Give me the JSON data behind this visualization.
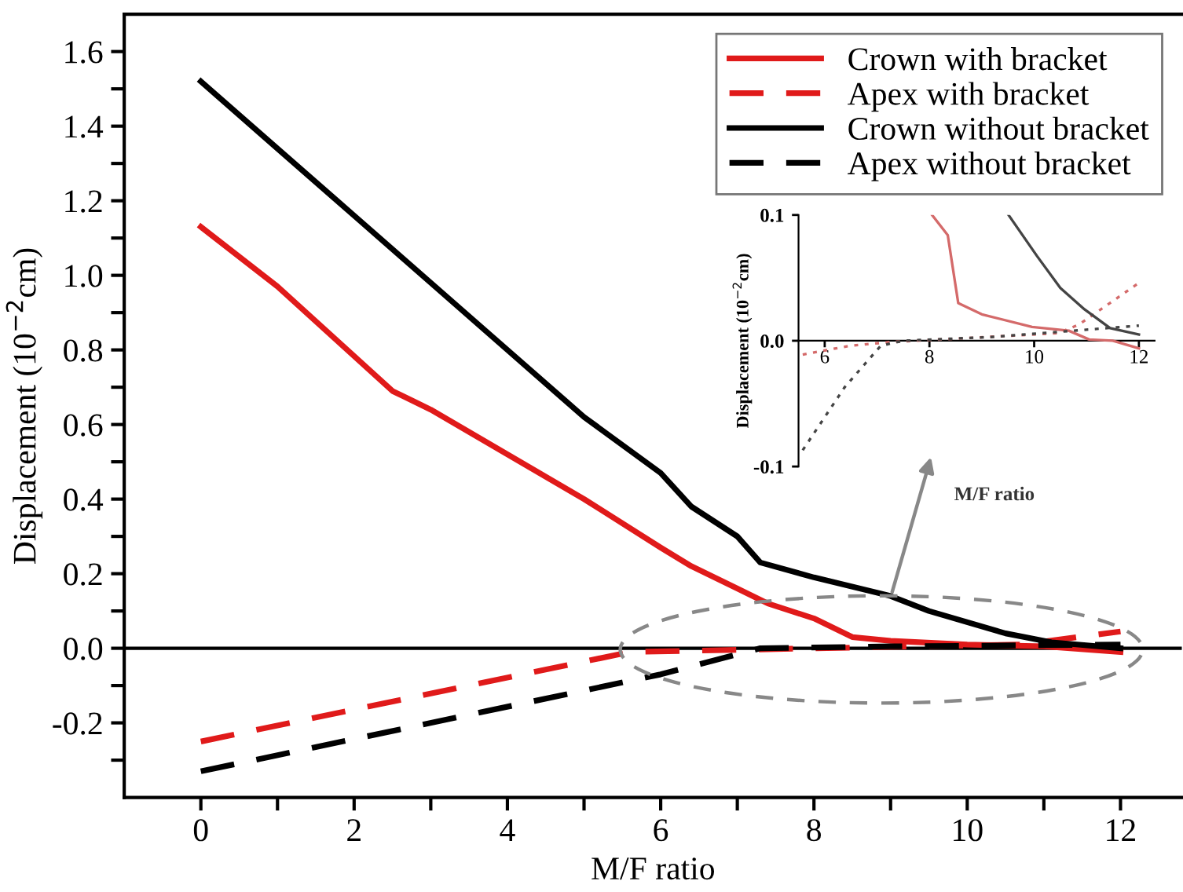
{
  "chart_data": [
    {
      "type": "line",
      "xlabel": "M/F ratio",
      "ylabel": "Displacement (10$^{−2}$cm)",
      "xlim": [
        -1,
        12.8
      ],
      "ylim": [
        -0.4,
        1.7
      ],
      "xticks": [
        0,
        {
          "value": 1,
          "label": null
        },
        2,
        {
          "value": 3,
          "label": null
        },
        4,
        {
          "value": 5,
          "label": null
        },
        6,
        {
          "value": 7,
          "label": null
        },
        8,
        {
          "value": 9,
          "label": null
        },
        10,
        {
          "value": 11,
          "label": null
        },
        12
      ],
      "yticks": [
        {
          "value": -0.3,
          "label": null
        },
        {
          "value": -0.2,
          "label": "-0.2"
        },
        {
          "value": -0.1,
          "label": null
        },
        {
          "value": 0,
          "label": "0.0"
        },
        {
          "value": 0.1,
          "label": null
        },
        {
          "value": 0.2,
          "label": "0.2"
        },
        {
          "value": 0.3,
          "label": null
        },
        {
          "value": 0.4,
          "label": "0.4"
        },
        {
          "value": 0.5,
          "label": null
        },
        {
          "value": 0.6,
          "label": "0.6"
        },
        {
          "value": 0.7,
          "label": null
        },
        {
          "value": 0.8,
          "label": "0.8"
        },
        {
          "value": 0.9,
          "label": null
        },
        {
          "value": 1.0,
          "label": "1.0"
        },
        {
          "value": 1.1,
          "label": null
        },
        {
          "value": 1.2,
          "label": "1.2"
        },
        {
          "value": 1.3,
          "label": null
        },
        {
          "value": 1.4,
          "label": "1.4"
        },
        {
          "value": 1.5,
          "label": null
        },
        {
          "value": 1.6,
          "label": "1.6"
        }
      ],
      "grid": false,
      "legend": "top right",
      "marker": "none",
      "ref_lines": [
        {
          "axis": "y",
          "value": 0,
          "color": "#000000",
          "line_style": "solid"
        }
      ],
      "series": [
        {
          "name": "Crown with bracket",
          "color": "#e01a1a",
          "line_style": "solid",
          "x": [
            0,
            1,
            2.5,
            3,
            4,
            5,
            6,
            6.4,
            7,
            7.4,
            8,
            8.5,
            9,
            10,
            11,
            12
          ],
          "values": [
            1.13,
            0.97,
            0.69,
            0.64,
            0.52,
            0.4,
            0.27,
            0.22,
            0.16,
            0.12,
            0.08,
            0.03,
            0.02,
            0.01,
            0.005,
            -0.01
          ]
        },
        {
          "name": "Apex with bracket",
          "color": "#e01a1a",
          "line_style": "dashed",
          "x": [
            0,
            5.6,
            8,
            10.7,
            12
          ],
          "values": [
            -0.25,
            -0.01,
            0.0,
            0.01,
            0.045
          ]
        },
        {
          "name": "Crown without bracket",
          "color": "#000000",
          "line_style": "solid",
          "x": [
            0,
            1,
            2,
            3,
            4,
            5,
            6,
            6.4,
            7,
            7.3,
            8,
            9,
            9.5,
            10.5,
            11.1,
            12
          ],
          "values": [
            1.52,
            1.34,
            1.16,
            0.98,
            0.8,
            0.62,
            0.47,
            0.38,
            0.3,
            0.23,
            0.19,
            0.14,
            0.1,
            0.04,
            0.016,
            0.0
          ]
        },
        {
          "name": "Apex without bracket",
          "color": "#000000",
          "line_style": "dashed",
          "x": [
            0,
            6,
            7.3,
            9,
            12
          ],
          "values": [
            -0.33,
            -0.07,
            0.0,
            0.005,
            0.01
          ]
        }
      ]
    },
    {
      "type": "line",
      "xlabel": "M/F ratio",
      "ylabel": "Displacement (10$^{−2}$cm)",
      "xlim": [
        5.5,
        12.3
      ],
      "ylim": [
        -0.1,
        0.1
      ],
      "xticks": [
        6,
        8,
        10,
        12
      ],
      "yticks": [
        {
          "value": -0.1,
          "label": "-0.1"
        },
        {
          "value": 0,
          "label": "0.0"
        },
        {
          "value": 0.1,
          "label": "0.1"
        }
      ],
      "grid": false,
      "legend": false,
      "marker": "none",
      "series": [
        {
          "color": "#d46a6a",
          "line_style": "solid",
          "x": [
            8.05,
            8.35,
            8.55,
            9.0,
            9.96,
            10.66,
            11.05,
            11.5,
            12
          ],
          "values": [
            0.1,
            0.084,
            0.03,
            0.021,
            0.011,
            0.008,
            0.001,
            0.0,
            -0.006
          ]
        },
        {
          "color": "#d46a6a",
          "line_style": "dotted",
          "x": [
            5.58,
            6.48,
            7.27,
            8.67,
            10.46,
            10.86,
            12
          ],
          "values": [
            -0.011,
            -0.004,
            -0.001,
            0.002,
            0.006,
            0.013,
            0.046
          ]
        },
        {
          "color": "#444444",
          "line_style": "solid",
          "x": [
            9.51,
            10.06,
            10.5,
            10.96,
            11.45,
            12
          ],
          "values": [
            0.1,
            0.067,
            0.042,
            0.025,
            0.01,
            0.005
          ]
        },
        {
          "color": "#444444",
          "line_style": "dotted",
          "x": [
            5.58,
            6.38,
            7.07,
            7.5,
            9.2,
            12
          ],
          "values": [
            -0.087,
            -0.037,
            -0.004,
            0.0,
            0.003,
            0.012
          ]
        }
      ]
    }
  ]
}
